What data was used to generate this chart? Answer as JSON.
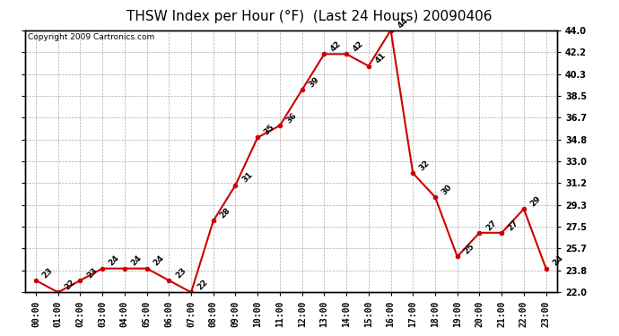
{
  "title": "THSW Index per Hour (°F)  (Last 24 Hours) 20090406",
  "copyright": "Copyright 2009 Cartronics.com",
  "hours": [
    "00:00",
    "01:00",
    "02:00",
    "03:00",
    "04:00",
    "05:00",
    "06:00",
    "07:00",
    "08:00",
    "09:00",
    "10:00",
    "11:00",
    "12:00",
    "13:00",
    "14:00",
    "15:00",
    "16:00",
    "17:00",
    "18:00",
    "19:00",
    "20:00",
    "21:00",
    "22:00",
    "23:00"
  ],
  "values": [
    23,
    22,
    23,
    24,
    24,
    24,
    23,
    22,
    28,
    31,
    35,
    36,
    39,
    42,
    42,
    41,
    44,
    32,
    30,
    25,
    27,
    27,
    29,
    24
  ],
  "ylim": [
    22.0,
    44.0
  ],
  "yticks": [
    22.0,
    23.8,
    25.7,
    27.5,
    29.3,
    31.2,
    33.0,
    34.8,
    36.7,
    38.5,
    40.3,
    42.2,
    44.0
  ],
  "line_color": "#cc0000",
  "marker_color": "#cc0000",
  "bg_color": "#ffffff",
  "plot_bg_color": "#ffffff",
  "grid_color": "#aaaaaa",
  "title_fontsize": 11,
  "annotation_fontsize": 6.5,
  "tick_fontsize": 7,
  "copyright_fontsize": 6.5
}
